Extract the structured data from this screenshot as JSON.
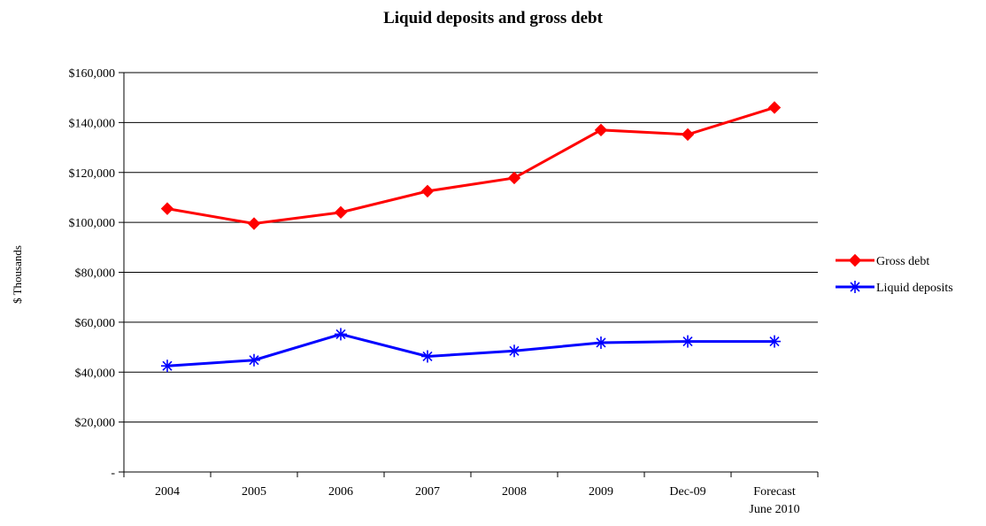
{
  "chart_data": {
    "type": "line",
    "title": "Liquid deposits and gross debt",
    "xlabel": "",
    "ylabel": "$ Thousands",
    "categories": [
      "2004",
      "2005",
      "2006",
      "2007",
      "2008",
      "2009",
      "Dec-09",
      "Forecast\nJune 2010"
    ],
    "ylim": [
      0,
      160000
    ],
    "yticks": [
      0,
      20000,
      40000,
      60000,
      80000,
      100000,
      120000,
      140000,
      160000
    ],
    "ytick_labels": [
      "-",
      "$20,000",
      "$40,000",
      "$60,000",
      "$80,000",
      "$100,000",
      "$120,000",
      "$140,000",
      "$160,000"
    ],
    "grid": "horizontal",
    "legend_position": "right",
    "series": [
      {
        "name": "Gross debt",
        "color": "#FF0000",
        "marker": "diamond",
        "values": [
          105500,
          99500,
          104000,
          112500,
          117800,
          137000,
          135200,
          146000
        ]
      },
      {
        "name": "Liquid deposits",
        "color": "#0000FF",
        "marker": "asterisk",
        "values": [
          42500,
          44800,
          55200,
          46300,
          48500,
          51800,
          52300,
          52300
        ]
      }
    ]
  }
}
